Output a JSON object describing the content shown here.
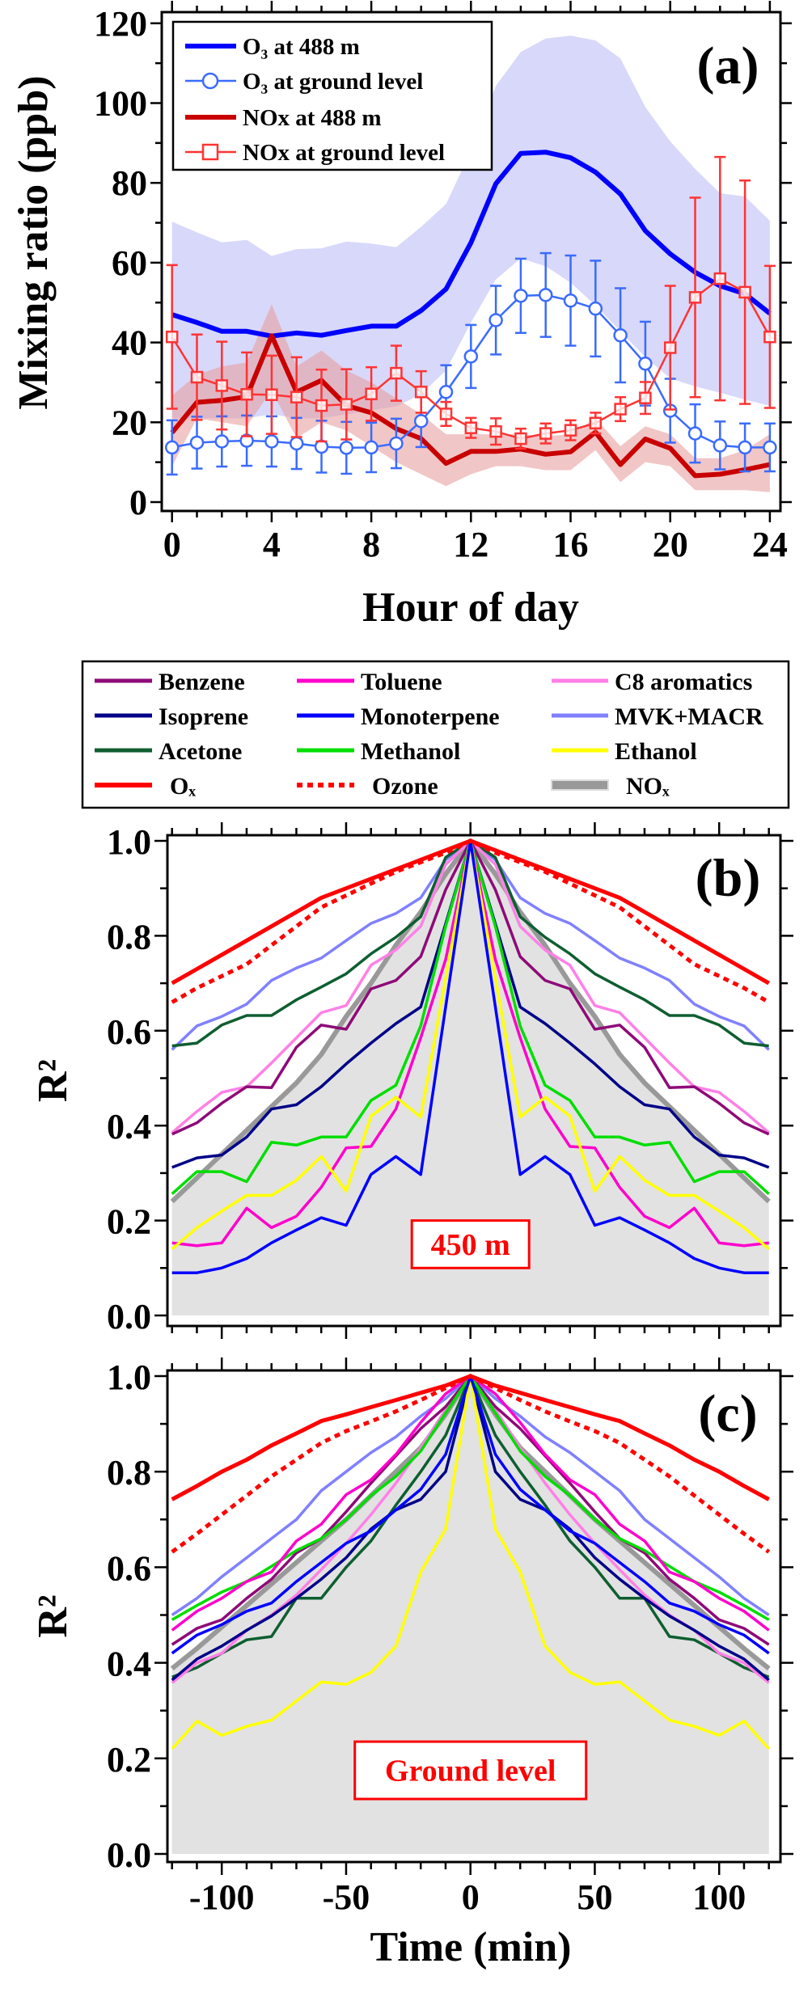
{
  "chart_data": [
    {
      "panel": "(a)",
      "type": "line",
      "xlabel": "Hour of day",
      "ylabel": "Mixing ratio (ppb)",
      "xlim": [
        0,
        24
      ],
      "ylim": [
        0,
        120
      ],
      "xticks": [
        0,
        4,
        8,
        12,
        16,
        20,
        24
      ],
      "yticks": [
        0,
        20,
        40,
        60,
        80,
        100,
        120
      ],
      "legend_position": "top-left",
      "x": [
        0,
        1,
        2,
        3,
        4,
        5,
        6,
        7,
        8,
        9,
        10,
        11,
        12,
        13,
        14,
        15,
        16,
        17,
        18,
        19,
        20,
        21,
        22,
        23,
        24
      ],
      "series": [
        {
          "name": "O₃ at 488 m",
          "color": "#0000ff",
          "style": "thick-line",
          "values": [
            47,
            45,
            42.8,
            42.8,
            41.6,
            42.4,
            41.8,
            43,
            44.1,
            44.1,
            48,
            53.4,
            65,
            79.8,
            87.4,
            87.7,
            86.3,
            82.7,
            77.2,
            68,
            62.2,
            57.6,
            54.2,
            52.2,
            47.3
          ],
          "band_upper": [
            70.3,
            67.6,
            65.1,
            65.7,
            61.7,
            63.4,
            63.6,
            65.3,
            64.8,
            63.9,
            69,
            74.7,
            88,
            104.3,
            112.8,
            116.2,
            116.9,
            115.7,
            111.2,
            99,
            90.4,
            83.5,
            77.4,
            76.6,
            70.5
          ],
          "band_lower": [
            21,
            21,
            21,
            21,
            22,
            21,
            21,
            22,
            23,
            24,
            27,
            33,
            45,
            55.8,
            61.1,
            59.1,
            55,
            49.3,
            42.8,
            36.3,
            31,
            29,
            27.4,
            25.7,
            24.1
          ],
          "band_color": "#d6d6fa"
        },
        {
          "name": "O₃ at ground level",
          "color": "#3a6bff",
          "style": "circle-markers",
          "values": [
            13.7,
            14.9,
            15.2,
            15.4,
            15.2,
            14.7,
            13.9,
            13.6,
            13.7,
            14.7,
            20.3,
            27.6,
            36.5,
            45.6,
            51.7,
            51.9,
            50.5,
            48.5,
            41.8,
            34.7,
            22.9,
            17.2,
            14.2,
            13.7,
            13.7
          ],
          "error": [
            6.8,
            6.5,
            6.3,
            6.3,
            6.3,
            6.4,
            6.5,
            6.5,
            6.2,
            6.2,
            6.5,
            6.7,
            7.9,
            8.6,
            9.3,
            10.5,
            11.3,
            12,
            11.8,
            10.5,
            8,
            7.3,
            6,
            6,
            6
          ]
        },
        {
          "name": "NOx at 488 m",
          "color": "#c80000",
          "style": "thick-line",
          "values": [
            17.4,
            25,
            25.5,
            26.4,
            41.7,
            27.6,
            30.5,
            24.2,
            22.4,
            18.4,
            15.9,
            9.7,
            12.7,
            12.7,
            13.3,
            12,
            12.6,
            17.5,
            9.4,
            15.8,
            13.5,
            6.6,
            7,
            8.1,
            9.4
          ],
          "band_upper": [
            26.7,
            32,
            34,
            35,
            49.6,
            34,
            38,
            33,
            30,
            26,
            22,
            17,
            17,
            17,
            17,
            16.5,
            17,
            21,
            14,
            19,
            17,
            11,
            11,
            13,
            17
          ],
          "band_lower": [
            9,
            21,
            20,
            19,
            28,
            16,
            20,
            18,
            14,
            10,
            7,
            4,
            7,
            9,
            9,
            8,
            8,
            13,
            5,
            10,
            9,
            3,
            3,
            3,
            2.5
          ],
          "band_color": "#e8a0a0"
        },
        {
          "name": "NOx at ground level",
          "color": "#ff3333",
          "style": "square-markers",
          "values": [
            41.4,
            31.3,
            29.2,
            27,
            26.9,
            26.3,
            24.2,
            24.5,
            27.1,
            32.3,
            27.6,
            22.1,
            18.6,
            17.7,
            15.9,
            17.2,
            18,
            19.8,
            23.3,
            26.1,
            38.7,
            51.3,
            56,
            52.6,
            41.4
          ],
          "error": [
            18,
            10.7,
            11,
            10.5,
            9.8,
            10,
            9,
            8.8,
            6.7,
            6.9,
            5.2,
            3,
            2.5,
            3.3,
            2.5,
            2.5,
            2.5,
            2.6,
            3,
            4,
            15.5,
            25,
            30.5,
            28,
            17.8
          ]
        }
      ]
    },
    {
      "panel": "(b)",
      "annotation": "450 m",
      "type": "line",
      "xlabel": "",
      "ylabel": "R²",
      "xlim": [
        -120,
        120
      ],
      "ylim": [
        0,
        1
      ],
      "yticks": [
        "0.0",
        "0.2",
        "0.4",
        "0.6",
        "0.8",
        "1.0"
      ],
      "symmetric_about_zero": true,
      "x_half": [
        -120,
        -110,
        -100,
        -90,
        -80,
        -70,
        -60,
        -50,
        -40,
        -30,
        -20,
        -10,
        0
      ],
      "series": [
        {
          "key": "nox",
          "values": [
            0.24,
            0.29,
            0.34,
            0.39,
            0.44,
            0.49,
            0.55,
            0.63,
            0.7,
            0.78,
            0.85,
            0.93,
            1
          ]
        },
        {
          "key": "ox",
          "values": [
            0.7,
            0.73,
            0.76,
            0.79,
            0.82,
            0.85,
            0.88,
            0.9,
            0.92,
            0.94,
            0.96,
            0.98,
            1
          ]
        },
        {
          "key": "ozone",
          "values": [
            0.66,
            0.69,
            0.715,
            0.74,
            0.78,
            0.82,
            0.86,
            0.885,
            0.91,
            0.935,
            0.955,
            0.975,
            1
          ]
        },
        {
          "key": "mvk",
          "values": [
            0.56,
            0.61,
            0.63,
            0.656,
            0.706,
            0.732,
            0.753,
            0.79,
            0.826,
            0.847,
            0.88,
            0.96,
            1
          ]
        },
        {
          "key": "acetone",
          "values": [
            0.568,
            0.574,
            0.612,
            0.632,
            0.632,
            0.665,
            0.692,
            0.72,
            0.762,
            0.797,
            0.84,
            0.965,
            1
          ]
        },
        {
          "key": "c8",
          "values": [
            0.385,
            0.43,
            0.47,
            0.482,
            0.532,
            0.585,
            0.638,
            0.653,
            0.738,
            0.77,
            0.82,
            0.95,
            1
          ]
        },
        {
          "key": "benzene",
          "values": [
            0.382,
            0.406,
            0.447,
            0.482,
            0.48,
            0.565,
            0.612,
            0.603,
            0.688,
            0.706,
            0.756,
            0.897,
            1
          ]
        },
        {
          "key": "isoprene",
          "values": [
            0.312,
            0.332,
            0.338,
            0.376,
            0.435,
            0.444,
            0.482,
            0.53,
            0.574,
            0.615,
            0.65,
            0.825,
            1
          ]
        },
        {
          "key": "methanol",
          "values": [
            0.256,
            0.303,
            0.303,
            0.282,
            0.365,
            0.359,
            0.376,
            0.376,
            0.453,
            0.485,
            0.61,
            0.82,
            1
          ]
        },
        {
          "key": "ethanol",
          "values": [
            0.14,
            0.185,
            0.22,
            0.253,
            0.253,
            0.285,
            0.335,
            0.262,
            0.42,
            0.46,
            0.418,
            0.71,
            1
          ]
        },
        {
          "key": "toluene",
          "values": [
            0.153,
            0.147,
            0.153,
            0.226,
            0.185,
            0.209,
            0.27,
            0.353,
            0.356,
            0.435,
            0.585,
            0.75,
            1
          ]
        },
        {
          "key": "monoterpene",
          "values": [
            0.09,
            0.09,
            0.1,
            0.12,
            0.153,
            0.18,
            0.206,
            0.19,
            0.297,
            0.335,
            0.297,
            0.65,
            1
          ]
        }
      ]
    },
    {
      "panel": "(c)",
      "annotation": "Ground level",
      "type": "line",
      "xlabel": "Time (min)",
      "ylabel": "R²",
      "xlim": [
        -120,
        120
      ],
      "ylim": [
        0,
        1
      ],
      "xticks": [
        "-100",
        "-50",
        "0",
        "50",
        "100"
      ],
      "yticks": [
        "0.0",
        "0.2",
        "0.4",
        "0.6",
        "0.8",
        "1.0"
      ],
      "symmetric_about_zero": true,
      "x_half": [
        -120,
        -110,
        -100,
        -90,
        -80,
        -70,
        -60,
        -50,
        -40,
        -30,
        -20,
        -10,
        0
      ],
      "series": [
        {
          "key": "nox",
          "values": [
            0.388,
            0.43,
            0.475,
            0.52,
            0.565,
            0.61,
            0.655,
            0.7,
            0.75,
            0.8,
            0.85,
            0.92,
            1
          ]
        },
        {
          "key": "ox",
          "values": [
            0.742,
            0.77,
            0.8,
            0.825,
            0.855,
            0.88,
            0.906,
            0.92,
            0.935,
            0.95,
            0.965,
            0.98,
            1
          ]
        },
        {
          "key": "ozone",
          "values": [
            0.632,
            0.67,
            0.71,
            0.75,
            0.79,
            0.825,
            0.86,
            0.885,
            0.905,
            0.926,
            0.95,
            0.975,
            1
          ]
        },
        {
          "key": "mvk",
          "values": [
            0.5,
            0.535,
            0.58,
            0.62,
            0.66,
            0.7,
            0.76,
            0.8,
            0.84,
            0.873,
            0.916,
            0.953,
            1
          ]
        },
        {
          "key": "toluene",
          "values": [
            0.468,
            0.508,
            0.535,
            0.57,
            0.59,
            0.655,
            0.69,
            0.752,
            0.783,
            0.836,
            0.903,
            0.963,
            1
          ]
        },
        {
          "key": "methanol",
          "values": [
            0.49,
            0.52,
            0.548,
            0.57,
            0.602,
            0.635,
            0.66,
            0.7,
            0.75,
            0.79,
            0.843,
            0.923,
            1
          ]
        },
        {
          "key": "benzene",
          "values": [
            0.438,
            0.472,
            0.49,
            0.535,
            0.575,
            0.63,
            0.66,
            0.716,
            0.776,
            0.833,
            0.89,
            0.936,
            1
          ]
        },
        {
          "key": "monoterpene",
          "values": [
            0.42,
            0.458,
            0.48,
            0.508,
            0.525,
            0.57,
            0.61,
            0.65,
            0.676,
            0.72,
            0.763,
            0.836,
            1
          ]
        },
        {
          "key": "isoprene",
          "values": [
            0.364,
            0.408,
            0.435,
            0.468,
            0.498,
            0.535,
            0.575,
            0.62,
            0.68,
            0.72,
            0.742,
            0.8,
            1
          ]
        },
        {
          "key": "c8",
          "values": [
            0.358,
            0.4,
            0.42,
            0.468,
            0.5,
            0.542,
            0.595,
            0.65,
            0.71,
            0.776,
            0.85,
            0.93,
            1
          ]
        },
        {
          "key": "acetone",
          "values": [
            0.37,
            0.39,
            0.42,
            0.448,
            0.455,
            0.535,
            0.535,
            0.6,
            0.655,
            0.73,
            0.8,
            0.876,
            1
          ]
        },
        {
          "key": "ethanol",
          "values": [
            0.22,
            0.278,
            0.248,
            0.267,
            0.28,
            0.32,
            0.36,
            0.355,
            0.38,
            0.435,
            0.59,
            0.68,
            1
          ]
        }
      ]
    }
  ],
  "species_legend": [
    {
      "key": "benzene",
      "label": "Benzene",
      "color": "#8e0a78"
    },
    {
      "key": "toluene",
      "label": "Toluene",
      "color": "#ff00cc"
    },
    {
      "key": "c8",
      "label": "C8 aromatics",
      "color": "#ff80e6"
    },
    {
      "key": "isoprene",
      "label": "Isoprene",
      "color": "#000088"
    },
    {
      "key": "monoterpene",
      "label": "Monoterpene",
      "color": "#0000ff"
    },
    {
      "key": "mvk",
      "label": "MVK+MACR",
      "color": "#8080ff"
    },
    {
      "key": "acetone",
      "label": "Acetone",
      "color": "#0e5e30"
    },
    {
      "key": "methanol",
      "label": "Methanol",
      "color": "#00dd00"
    },
    {
      "key": "ethanol",
      "label": "Ethanol",
      "color": "#ffff00"
    },
    {
      "key": "ox",
      "label": "Oₓ",
      "color": "#ff0000"
    },
    {
      "key": "ozone",
      "label": "Ozone",
      "color": "#ff0000",
      "dashed": true
    },
    {
      "key": "nox",
      "label": "NOₓ",
      "color": "#999999"
    }
  ],
  "panel_a_xticks": [
    "0",
    "4",
    "8",
    "12",
    "16",
    "20",
    "24"
  ],
  "panel_a_yticks": [
    "0",
    "20",
    "40",
    "60",
    "80",
    "100",
    "120"
  ]
}
